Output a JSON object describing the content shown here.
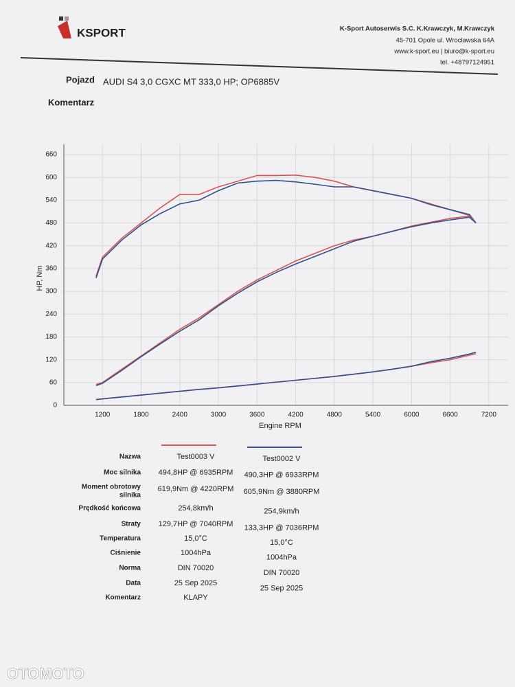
{
  "header": {
    "logo": "KSPORT",
    "company": [
      "K-Sport Autoserwis S.C. K.Krawczyk, M.Krawczyk",
      "45-701 Opole ul. Wrocławska 64A",
      "www.k-sport.eu | biuro@k-sport.eu",
      "tel. +48797124951"
    ]
  },
  "vehicle": {
    "label": "Pojazd",
    "value": "AUDI S4 3,0 CGXC MT 333,0 HP; OP6885V"
  },
  "comment_label": "Komentarz",
  "chart_data": {
    "type": "line",
    "xlabel": "Engine RPM",
    "ylabel": "HP, Nm",
    "x": [
      1100,
      1200,
      1500,
      1800,
      2100,
      2400,
      2700,
      3000,
      3300,
      3600,
      3900,
      4200,
      4500,
      4800,
      5100,
      5400,
      5700,
      6000,
      6300,
      6600,
      6900,
      7000
    ],
    "series": [
      {
        "color": "#d9534f",
        "values": [
          340,
          390,
          440,
          480,
          520,
          555,
          555,
          575,
          590,
          605,
          605,
          606,
          600,
          590,
          575,
          565,
          555,
          545,
          530,
          515,
          500,
          480
        ]
      },
      {
        "color": "#2f4f8f",
        "values": [
          335,
          385,
          435,
          475,
          505,
          530,
          540,
          565,
          585,
          590,
          592,
          588,
          582,
          575,
          575,
          565,
          555,
          545,
          528,
          515,
          502,
          480
        ]
      },
      {
        "color": "#d9534f",
        "values": [
          55,
          60,
          95,
          130,
          165,
          200,
          230,
          265,
          300,
          330,
          355,
          380,
          400,
          420,
          435,
          445,
          458,
          472,
          482,
          492,
          498,
          480
        ]
      },
      {
        "color": "#2f4f8f",
        "values": [
          52,
          58,
          92,
          128,
          162,
          195,
          225,
          262,
          295,
          325,
          350,
          372,
          392,
          412,
          432,
          445,
          458,
          470,
          480,
          488,
          495,
          480
        ]
      },
      {
        "color": "#d9534f",
        "values": [
          15,
          17,
          22,
          27,
          32,
          37,
          42,
          46,
          51,
          56,
          61,
          66,
          71,
          76,
          82,
          88,
          95,
          103,
          112,
          120,
          132,
          136
        ]
      },
      {
        "color": "#2f4f8f",
        "values": [
          15,
          17,
          22,
          27,
          32,
          37,
          42,
          46,
          51,
          56,
          61,
          66,
          71,
          76,
          82,
          88,
          95,
          103,
          115,
          124,
          135,
          140
        ]
      }
    ],
    "xlim": [
      600,
      7500
    ],
    "xticks": [
      1200,
      1800,
      2400,
      3000,
      3600,
      4200,
      4800,
      5400,
      6000,
      6600,
      7200
    ],
    "ylim": [
      0,
      660
    ],
    "yticks": [
      0,
      60,
      120,
      180,
      240,
      300,
      360,
      420,
      480,
      540,
      600,
      660
    ],
    "grid": true
  },
  "table": {
    "rows": [
      [
        "Nazwa",
        "Test0003 V",
        "Test0002 V"
      ],
      [
        "Moc silnika",
        "494,8HP @ 6935RPM",
        "490,3HP @ 6933RPM"
      ],
      [
        [
          "Moment obrotowy",
          "silnika"
        ],
        "619,9Nm @ 4220RPM",
        "605,9Nm @ 3880RPM"
      ],
      [
        "Prędkość końcowa",
        "254,8km/h",
        "254,9km/h"
      ],
      [
        "Straty",
        "129,7HP @ 7040RPM",
        "133,3HP @ 7036RPM"
      ],
      [
        "Temperatura",
        "15,0°C",
        "15,0°C"
      ],
      [
        "Ciśnienie",
        "1004hPa",
        "1004hPa"
      ],
      [
        "Norma",
        "DIN 70020",
        "DIN 70020"
      ],
      [
        "Data",
        "25 Sep 2025",
        "25 Sep 2025"
      ],
      [
        "Komentarz",
        "KLAPY"
      ]
    ]
  },
  "watermark": "OTOMOTO"
}
